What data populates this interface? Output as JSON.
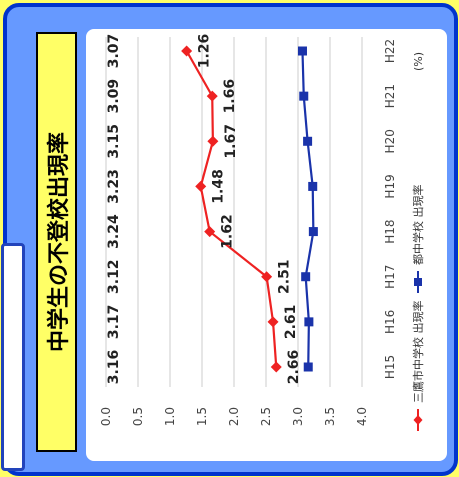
{
  "title": "中学生の不登校出現率",
  "chart_data": {
    "type": "line",
    "categories": [
      "H15",
      "H16",
      "H17",
      "H18",
      "H19",
      "H20",
      "H21",
      "H22"
    ],
    "ylim": [
      0.0,
      4.0
    ],
    "yticks": [
      "0.0",
      "0.5",
      "1.0",
      "1.5",
      "2.0",
      "2.5",
      "3.0",
      "3.5",
      "4.0"
    ],
    "grid": true,
    "legend_placement": "bottom",
    "unit": "(%)",
    "series": [
      {
        "name": "三鷹市中学校 出現率",
        "color": "#ee2222",
        "marker": "diamond",
        "values": [
          2.66,
          2.61,
          2.51,
          1.62,
          1.48,
          1.67,
          1.66,
          1.26
        ],
        "labels": [
          "2.66",
          "2.61",
          "2.51",
          "1.62",
          "1.48",
          "1.67",
          "1.66",
          "1.26"
        ]
      },
      {
        "name": "都中学校 出現率",
        "color": "#1a33aa",
        "marker": "square",
        "values": [
          3.16,
          3.17,
          3.12,
          3.24,
          3.23,
          3.15,
          3.09,
          3.07
        ],
        "labels": [
          "3.16",
          "3.17",
          "3.12",
          "3.24",
          "3.23",
          "3.15",
          "3.09",
          "3.07"
        ]
      }
    ]
  }
}
